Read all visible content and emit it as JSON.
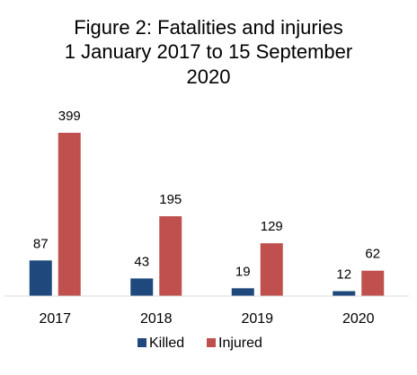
{
  "chart_data": {
    "type": "bar",
    "title_lines": [
      "Figure 2: Fatalities and injuries",
      "1 January 2017 to 15 September",
      "2020"
    ],
    "categories": [
      "2017",
      "2018",
      "2019",
      "2020"
    ],
    "series": [
      {
        "name": "Killed",
        "values": [
          87,
          43,
          19,
          12
        ],
        "color": "#1f497d"
      },
      {
        "name": "Injured",
        "values": [
          399,
          195,
          129,
          62
        ],
        "color": "#c0504d"
      }
    ],
    "ylim": [
      0,
      420
    ],
    "grid": false,
    "legend_position": "bottom"
  }
}
